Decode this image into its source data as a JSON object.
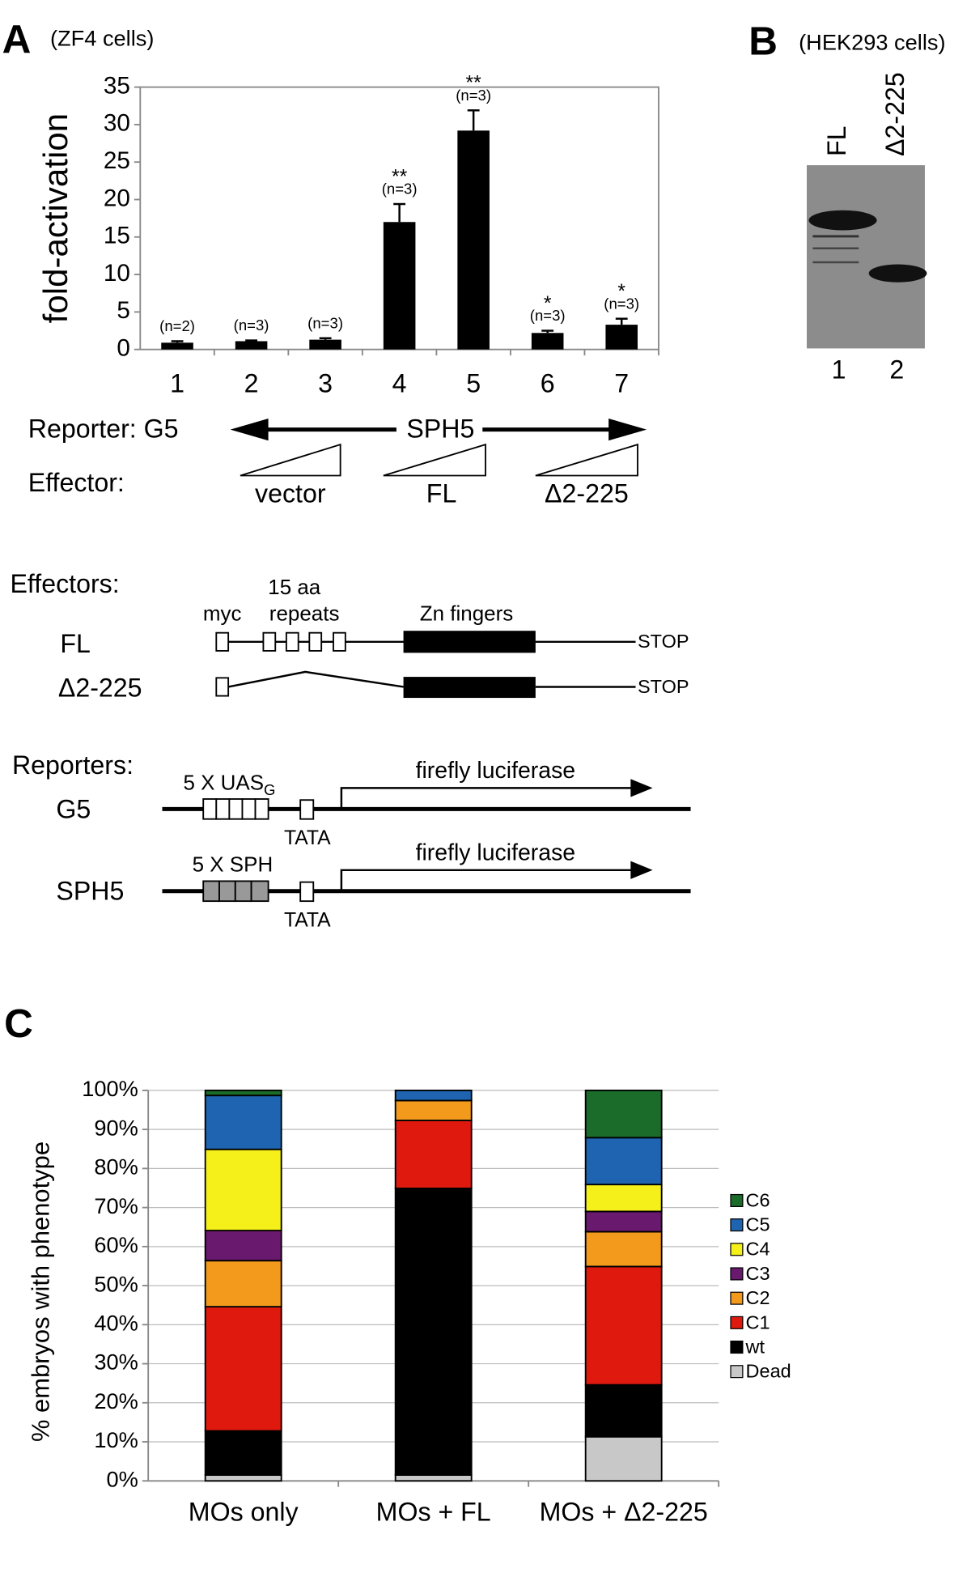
{
  "chart_data": [
    {
      "type": "bar",
      "panel": "A",
      "subtitle": "(ZF4 cells)",
      "y_label": "fold-activation",
      "categories": [
        "1",
        "2",
        "3",
        "4",
        "5",
        "6",
        "7"
      ],
      "values": [
        0.9,
        1.1,
        1.3,
        17,
        29.2,
        2.2,
        3.3
      ],
      "errors": [
        0.2,
        0.1,
        0.2,
        2.4,
        2.7,
        0.3,
        0.8
      ],
      "annotations": [
        "(n=2)",
        "(n=3)",
        "(n=3)",
        "(n=3)",
        "(n=3)",
        "(n=3)",
        "(n=3)"
      ],
      "significance": [
        null,
        null,
        null,
        "**",
        "**",
        "*",
        "*"
      ],
      "color": "#000000",
      "ylim": [
        0,
        35
      ],
      "yticks": [
        0,
        5,
        10,
        15,
        20,
        25,
        30,
        35
      ],
      "grid": false
    },
    {
      "type": "stacked_bar",
      "panel": "C",
      "y_label": "% embryos with phenotype",
      "categories": [
        "MOs only",
        "MOs + FL",
        "MOs + Δ2-225"
      ],
      "series": [
        {
          "name": "Dead",
          "color": "#c8c8c8",
          "values": [
            1.5,
            1.5,
            11.3
          ]
        },
        {
          "name": "wt",
          "color": "#000000",
          "values": [
            11.3,
            73.4,
            13.3
          ]
        },
        {
          "name": "C1",
          "color": "#e0190f",
          "values": [
            31.8,
            17.4,
            30.3
          ]
        },
        {
          "name": "C2",
          "color": "#f39a1d",
          "values": [
            11.8,
            5.1,
            8.9
          ]
        },
        {
          "name": "C3",
          "color": "#6a1a6e",
          "values": [
            7.7,
            0,
            5.2
          ]
        },
        {
          "name": "C4",
          "color": "#f6f01a",
          "values": [
            20.8,
            0,
            6.9
          ]
        },
        {
          "name": "C5",
          "color": "#1f64b0",
          "values": [
            13.8,
            2.6,
            12.0
          ]
        },
        {
          "name": "C6",
          "color": "#1b6b2a",
          "values": [
            1.3,
            0,
            12.1
          ]
        }
      ],
      "ylim": [
        0,
        100
      ],
      "yticks": [
        {
          "value": 0,
          "label": "0%"
        },
        {
          "value": 10,
          "label": "10%"
        },
        {
          "value": 20,
          "label": "20%"
        },
        {
          "value": 30,
          "label": "30%"
        },
        {
          "value": 40,
          "label": "40%"
        },
        {
          "value": 50,
          "label": "50%"
        },
        {
          "value": 60,
          "label": "60%"
        },
        {
          "value": 70,
          "label": "70%"
        },
        {
          "value": 80,
          "label": "80%"
        },
        {
          "value": 90,
          "label": "90%"
        },
        {
          "value": 100,
          "label": "100%"
        }
      ],
      "grid": true
    }
  ],
  "panel_a": {
    "reporter_label": "Reporter: G5",
    "reporter_sph": "SPH5",
    "effector_label": "Effector:",
    "groups": [
      "vector",
      "FL",
      "Δ2-225"
    ]
  },
  "panel_b": {
    "panel": "B",
    "subtitle": "(HEK293 cells)",
    "lanes": [
      "FL",
      "Δ2-225"
    ],
    "lane_numbers": [
      "1",
      "2"
    ]
  },
  "effectors": {
    "title": "Effectors:",
    "myc": "myc",
    "repeats_1": "15 aa",
    "repeats_2": "repeats",
    "zn": "Zn fingers",
    "rows": [
      "FL",
      "Δ2-225"
    ],
    "stop": "STOP"
  },
  "reporters": {
    "title": "Reporters:",
    "uas": "5 X UAS",
    "uas_sub": "G",
    "sph": "5 X SPH",
    "luciferase": "firefly luciferase",
    "rows": [
      "G5",
      "SPH5"
    ],
    "tata": "TATA"
  }
}
